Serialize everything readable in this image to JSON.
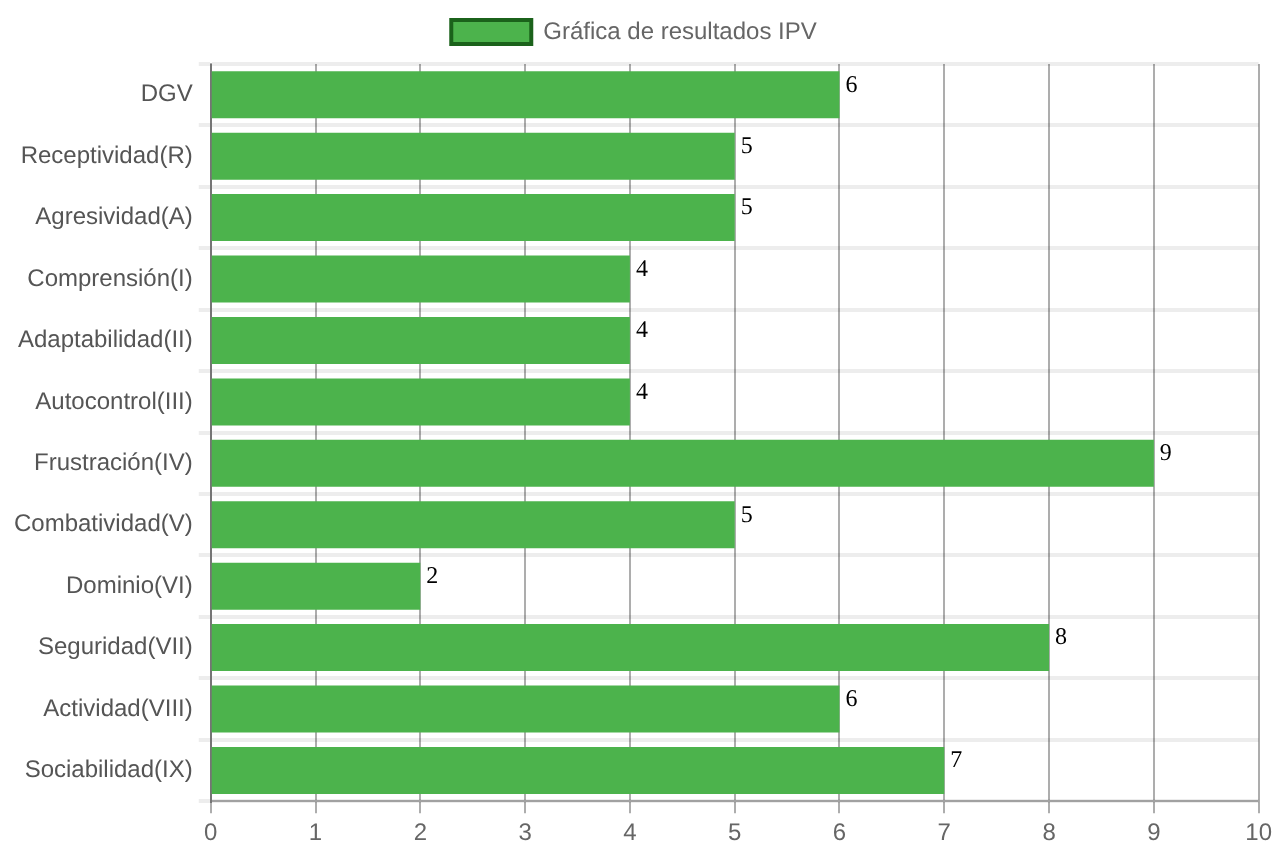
{
  "chart_data": {
    "type": "bar",
    "orientation": "horizontal",
    "categories": [
      "DGV",
      "Receptividad(R)",
      "Agresividad(A)",
      "Comprensión(I)",
      "Adaptabilidad(II)",
      "Autocontrol(III)",
      "Frustración(IV)",
      "Combatividad(V)",
      "Dominio(VI)",
      "Seguridad(VII)",
      "Actividad(VIII)",
      "Sociabilidad(IX)"
    ],
    "series": [
      {
        "name": "Gráfica de resultados IPV",
        "color": "#4cb34c",
        "values": [
          6,
          5,
          5,
          4,
          4,
          4,
          9,
          5,
          2,
          8,
          6,
          7
        ]
      }
    ],
    "xlim": [
      0,
      10
    ],
    "xticks": [
      0,
      1,
      2,
      3,
      4,
      5,
      6,
      7,
      8,
      9,
      10
    ],
    "grid": true,
    "legend": "top",
    "data_labels": true
  }
}
